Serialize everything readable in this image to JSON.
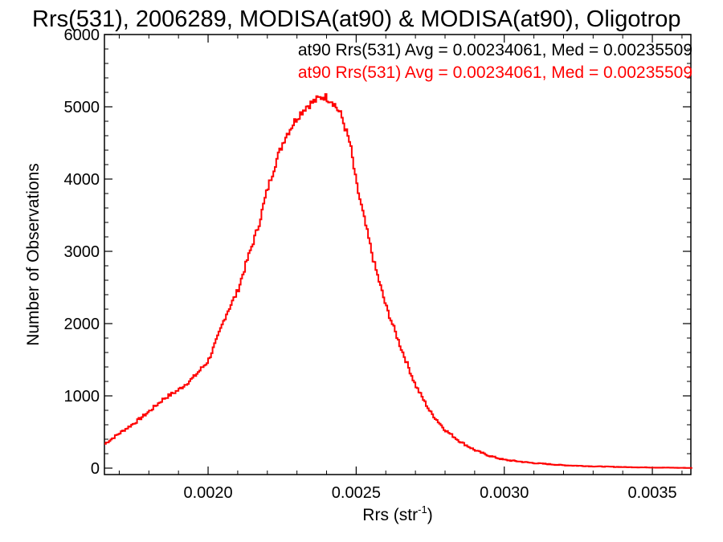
{
  "chart_data": {
    "type": "histogram",
    "title": "Rrs(531), 2006289, MODISA(at90) & MODISA(at90), Oligotrop",
    "xlabel": "Rrs (str",
    "xlabel_superscript": "-1",
    "xlabel_suffix": ")",
    "ylabel": "Number of Observations",
    "xlim": [
      0.00165,
      0.00363
    ],
    "ylim": [
      0,
      6000
    ],
    "x_ticks": [
      {
        "value": 0.002,
        "label": "0.0020"
      },
      {
        "value": 0.0025,
        "label": "0.0025"
      },
      {
        "value": 0.003,
        "label": "0.0030"
      },
      {
        "value": 0.0035,
        "label": "0.0035"
      }
    ],
    "y_ticks": [
      {
        "value": 0,
        "label": "0"
      },
      {
        "value": 1000,
        "label": "1000"
      },
      {
        "value": 2000,
        "label": "2000"
      },
      {
        "value": 3000,
        "label": "3000"
      },
      {
        "value": 4000,
        "label": "4000"
      },
      {
        "value": 5000,
        "label": "5000"
      },
      {
        "value": 6000,
        "label": "6000"
      }
    ],
    "legend": [
      {
        "text": "at90 Rrs(531) Avg = 0.00234061, Med = 0.00235509",
        "color": "#000000"
      },
      {
        "text": "at90 Rrs(531) Avg = 0.00234061, Med = 0.00235509",
        "color": "#ff0000"
      }
    ],
    "series": [
      {
        "color": "#ff0000",
        "x": [
          0.00165,
          0.0017,
          0.00175,
          0.0018,
          0.00185,
          0.0019,
          0.00195,
          0.002,
          0.00203,
          0.00206,
          0.0021,
          0.00213,
          0.00217,
          0.0022,
          0.00223,
          0.00226,
          0.0023,
          0.00233,
          0.00236,
          0.00239,
          0.00242,
          0.00245,
          0.00248,
          0.0025,
          0.00253,
          0.00256,
          0.0026,
          0.00265,
          0.0027,
          0.00275,
          0.0028,
          0.00285,
          0.0029,
          0.00295,
          0.003,
          0.0031,
          0.0032,
          0.0033,
          0.0034,
          0.0035,
          0.00363
        ],
        "y": [
          330,
          480,
          620,
          780,
          960,
          1080,
          1250,
          1480,
          1780,
          2120,
          2450,
          2850,
          3350,
          3850,
          4250,
          4580,
          4850,
          5000,
          5080,
          5150,
          5080,
          4880,
          4480,
          3950,
          3400,
          2850,
          2250,
          1680,
          1150,
          780,
          530,
          370,
          250,
          170,
          115,
          70,
          40,
          25,
          15,
          8,
          3
        ]
      }
    ]
  }
}
